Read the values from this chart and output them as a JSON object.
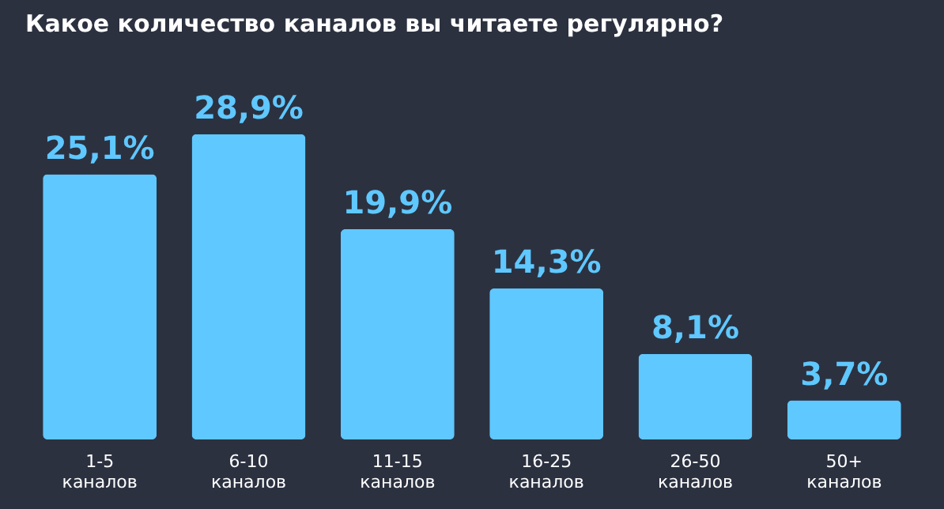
{
  "chart_data": {
    "type": "bar",
    "title": "Какое количество каналов вы читаете регулярно?",
    "categories": [
      "1-5\nканалов",
      "6-10\nканалов",
      "11-15\nканалов",
      "16-25\nканалов",
      "26-50\nканалов",
      "50+\nканалов"
    ],
    "values": [
      25.1,
      28.9,
      19.9,
      14.3,
      8.1,
      3.7
    ],
    "value_labels": [
      "25,1%",
      "28,9%",
      "19,9%",
      "14,3%",
      "8,1%",
      "3,7%"
    ],
    "color": "#5fc8ff",
    "grid": false
  }
}
